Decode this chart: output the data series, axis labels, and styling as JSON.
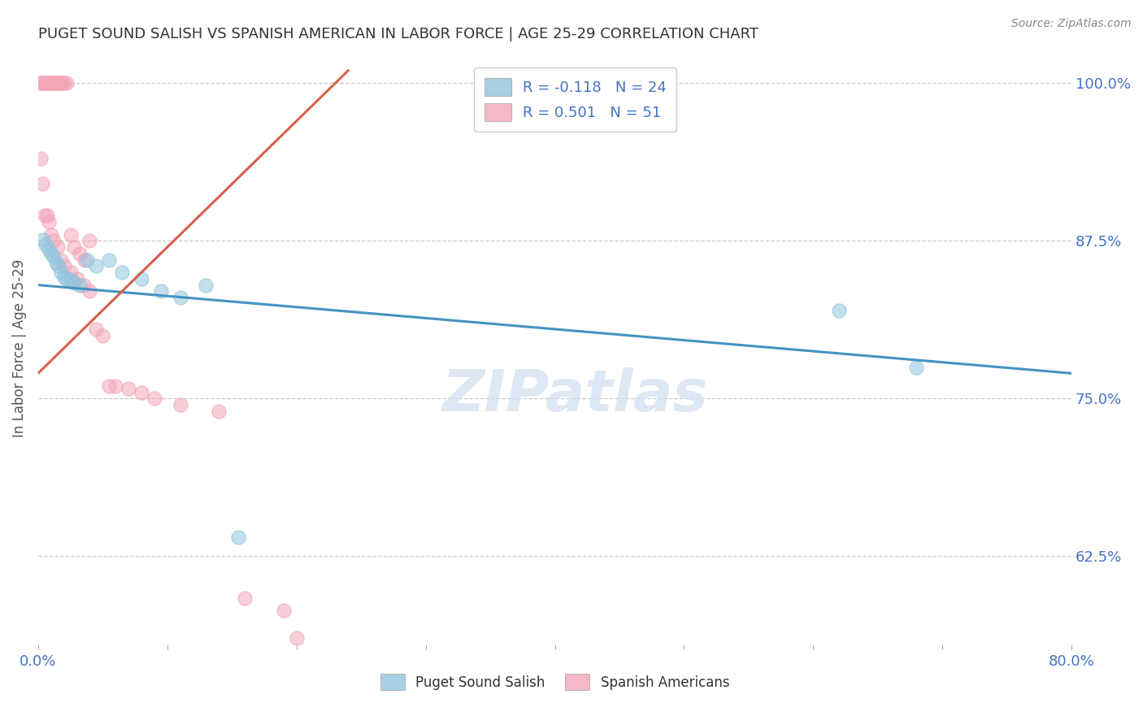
{
  "title": "PUGET SOUND SALISH VS SPANISH AMERICAN IN LABOR FORCE | AGE 25-29 CORRELATION CHART",
  "source": "Source: ZipAtlas.com",
  "ylabel": "In Labor Force | Age 25-29",
  "xlim": [
    0.0,
    0.8
  ],
  "ylim": [
    0.555,
    1.025
  ],
  "xticks": [
    0.0,
    0.1,
    0.2,
    0.3,
    0.4,
    0.5,
    0.6,
    0.7,
    0.8
  ],
  "ytick_positions": [
    0.625,
    0.75,
    0.875,
    1.0
  ],
  "ytick_labels": [
    "62.5%",
    "75.0%",
    "87.5%",
    "100.0%"
  ],
  "blue_R": -0.118,
  "blue_N": 24,
  "pink_R": 0.501,
  "pink_N": 51,
  "blue_color": "#92c5de",
  "pink_color": "#f4a6b8",
  "blue_line_color": "#4393c3",
  "pink_line_color": "#d6604d",
  "axis_color": "#4472c4",
  "grid_color": "#bbbbbb",
  "watermark": "ZIPatlas",
  "blue_x": [
    0.004,
    0.006,
    0.008,
    0.01,
    0.012,
    0.014,
    0.016,
    0.018,
    0.02,
    0.022,
    0.025,
    0.028,
    0.032,
    0.038,
    0.045,
    0.055,
    0.065,
    0.08,
    0.095,
    0.11,
    0.13,
    0.155,
    0.62,
    0.68
  ],
  "blue_y": [
    0.876,
    0.872,
    0.868,
    0.865,
    0.862,
    0.858,
    0.855,
    0.85,
    0.846,
    0.845,
    0.844,
    0.842,
    0.84,
    0.86,
    0.855,
    0.86,
    0.85,
    0.845,
    0.835,
    0.83,
    0.84,
    0.64,
    0.82,
    0.775
  ],
  "pink_x": [
    0.002,
    0.003,
    0.004,
    0.005,
    0.006,
    0.007,
    0.008,
    0.009,
    0.01,
    0.011,
    0.012,
    0.013,
    0.014,
    0.015,
    0.016,
    0.017,
    0.018,
    0.019,
    0.02,
    0.022,
    0.025,
    0.028,
    0.032,
    0.036,
    0.04,
    0.002,
    0.003,
    0.005,
    0.007,
    0.008,
    0.01,
    0.012,
    0.015,
    0.018,
    0.02,
    0.025,
    0.03,
    0.035,
    0.04,
    0.045,
    0.05,
    0.055,
    0.06,
    0.07,
    0.08,
    0.09,
    0.11,
    0.14,
    0.16,
    0.19,
    0.2
  ],
  "pink_y": [
    1.0,
    1.0,
    1.0,
    1.0,
    1.0,
    1.0,
    1.0,
    1.0,
    1.0,
    1.0,
    1.0,
    1.0,
    1.0,
    1.0,
    1.0,
    1.0,
    1.0,
    1.0,
    1.0,
    1.0,
    0.88,
    0.87,
    0.865,
    0.86,
    0.875,
    0.94,
    0.92,
    0.895,
    0.895,
    0.89,
    0.88,
    0.875,
    0.87,
    0.86,
    0.855,
    0.85,
    0.845,
    0.84,
    0.835,
    0.805,
    0.8,
    0.76,
    0.76,
    0.758,
    0.755,
    0.75,
    0.745,
    0.74,
    0.592,
    0.582,
    0.56
  ],
  "blue_trendline_x": [
    0.0,
    0.8
  ],
  "blue_trendline_y": [
    0.84,
    0.77
  ],
  "pink_trendline_x": [
    0.0,
    0.24
  ],
  "pink_trendline_y": [
    0.77,
    1.01
  ]
}
